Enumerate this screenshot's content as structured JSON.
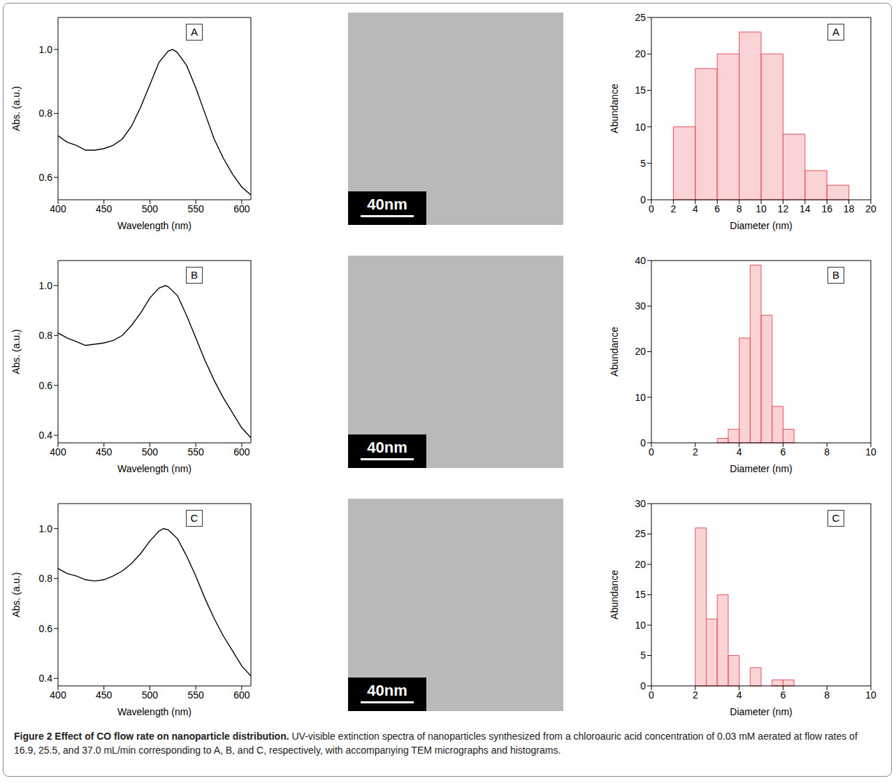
{
  "chart_data": [
    {
      "type": "line",
      "title": "A",
      "x_label": "Wavelength (nm)",
      "y_label": "Abs. (a.u.)",
      "color": "#000000",
      "x": [
        400,
        410,
        420,
        430,
        440,
        450,
        460,
        470,
        480,
        490,
        500,
        510,
        520,
        525,
        530,
        540,
        550,
        560,
        570,
        580,
        590,
        600,
        610
      ],
      "values": [
        0.73,
        0.71,
        0.7,
        0.685,
        0.685,
        0.69,
        0.7,
        0.72,
        0.76,
        0.82,
        0.89,
        0.96,
        0.995,
        1.0,
        0.99,
        0.95,
        0.88,
        0.8,
        0.72,
        0.66,
        0.61,
        0.57,
        0.545
      ],
      "xlim": [
        400,
        610
      ],
      "xticks": [
        400,
        450,
        500,
        550,
        600
      ],
      "ylim": [
        0.53,
        1.1
      ],
      "yticks": [
        0.6,
        0.8,
        {
          "value": 1,
          "label": "1.0"
        }
      ]
    },
    {
      "type": "histogram",
      "title": "A",
      "x_label": "Diameter (nm)",
      "y_label": "Abundance",
      "color": "#e8505b",
      "bins": [
        2,
        4,
        6,
        8,
        10,
        12,
        14,
        16,
        18
      ],
      "values": [
        10,
        18,
        20,
        23,
        20,
        9,
        4,
        2
      ],
      "xlim": [
        0,
        20
      ],
      "xticks": [
        0,
        2,
        4,
        6,
        8,
        10,
        12,
        14,
        16,
        18,
        20
      ],
      "ylim": [
        0,
        25
      ],
      "yticks": [
        0,
        5,
        10,
        15,
        20,
        25
      ]
    },
    {
      "type": "line",
      "title": "B",
      "x_label": "Wavelength (nm)",
      "y_label": "Abs. (a.u.)",
      "color": "#000000",
      "x": [
        400,
        410,
        420,
        430,
        440,
        450,
        460,
        470,
        480,
        490,
        500,
        510,
        517,
        520,
        530,
        540,
        550,
        560,
        570,
        580,
        590,
        600,
        610
      ],
      "values": [
        0.81,
        0.79,
        0.775,
        0.76,
        0.765,
        0.77,
        0.78,
        0.8,
        0.84,
        0.89,
        0.95,
        0.99,
        1.0,
        0.995,
        0.96,
        0.88,
        0.79,
        0.7,
        0.62,
        0.55,
        0.49,
        0.43,
        0.39
      ],
      "xlim": [
        400,
        610
      ],
      "xticks": [
        400,
        450,
        500,
        550,
        600
      ],
      "ylim": [
        0.37,
        1.1
      ],
      "yticks": [
        0.4,
        0.6,
        0.8,
        {
          "value": 1,
          "label": "1.0"
        }
      ]
    },
    {
      "type": "histogram",
      "title": "B",
      "x_label": "Diameter (nm)",
      "y_label": "Abundance",
      "color": "#e8505b",
      "bins": [
        3,
        3.5,
        4,
        4.5,
        5,
        5.5,
        6,
        6.5
      ],
      "values": [
        1,
        3,
        23,
        39,
        28,
        8,
        3
      ],
      "xlim": [
        0,
        10
      ],
      "xticks": [
        0,
        2,
        4,
        6,
        8,
        10
      ],
      "ylim": [
        0,
        40
      ],
      "yticks": [
        0,
        10,
        20,
        30,
        40
      ]
    },
    {
      "type": "line",
      "title": "C",
      "x_label": "Wavelength (nm)",
      "y_label": "Abs. (a.u.)",
      "color": "#000000",
      "x": [
        400,
        410,
        420,
        430,
        440,
        450,
        460,
        470,
        480,
        490,
        500,
        510,
        515,
        520,
        530,
        540,
        550,
        560,
        570,
        580,
        590,
        600,
        610
      ],
      "values": [
        0.84,
        0.82,
        0.81,
        0.795,
        0.79,
        0.795,
        0.81,
        0.83,
        0.86,
        0.9,
        0.95,
        0.99,
        1.0,
        0.995,
        0.96,
        0.89,
        0.81,
        0.72,
        0.64,
        0.57,
        0.51,
        0.45,
        0.41
      ],
      "xlim": [
        400,
        610
      ],
      "xticks": [
        400,
        450,
        500,
        550,
        600
      ],
      "ylim": [
        0.37,
        1.1
      ],
      "yticks": [
        0.4,
        0.6,
        0.8,
        {
          "value": 1,
          "label": "1.0"
        }
      ]
    },
    {
      "type": "histogram",
      "title": "C",
      "x_label": "Diameter (nm)",
      "y_label": "Abundance",
      "color": "#e8505b",
      "bins": [
        2,
        2.5,
        3,
        3.5,
        4,
        4.5,
        5,
        5.5,
        6,
        6.5
      ],
      "values": [
        26,
        11,
        15,
        5,
        0,
        3,
        0,
        1,
        1
      ],
      "xlim": [
        0,
        10
      ],
      "xticks": [
        0,
        2,
        4,
        6,
        8,
        10
      ],
      "ylim": [
        0,
        30
      ],
      "yticks": [
        0,
        5,
        10,
        15,
        20,
        25,
        30
      ]
    }
  ],
  "micrographs": [
    {
      "scale_bar": "40nm"
    },
    {
      "scale_bar": "40nm"
    },
    {
      "scale_bar": "40nm"
    }
  ],
  "caption": {
    "title": "Figure 2 Effect of CO flow rate on nanoparticle distribution.",
    "text": "UV-visible extinction spectra of nanoparticles synthesized from a chloroauric acid concentration of 0.03 mM aerated at flow rates of 16.9, 25.5, and 37.0 mL/min corresponding to A, B, and C, respectively, with accompanying TEM micrographs and histograms."
  }
}
